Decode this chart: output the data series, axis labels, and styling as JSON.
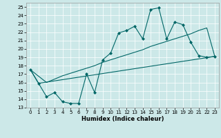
{
  "xlabel": "Humidex (Indice chaleur)",
  "bg_color": "#cce8e8",
  "line_color": "#006666",
  "xlim": [
    -0.5,
    23.5
  ],
  "ylim": [
    13,
    25.5
  ],
  "xticks": [
    0,
    1,
    2,
    3,
    4,
    5,
    6,
    7,
    8,
    9,
    10,
    11,
    12,
    13,
    14,
    15,
    16,
    17,
    18,
    19,
    20,
    21,
    22,
    23
  ],
  "yticks": [
    13,
    14,
    15,
    16,
    17,
    18,
    19,
    20,
    21,
    22,
    23,
    24,
    25
  ],
  "line1_x": [
    0,
    1,
    2,
    3,
    4,
    5,
    6,
    7,
    8,
    9,
    10,
    11,
    12,
    13,
    14,
    15,
    16,
    17,
    18,
    19,
    20,
    21,
    22,
    23
  ],
  "line1_y": [
    17.5,
    15.9,
    14.3,
    14.8,
    13.7,
    13.5,
    13.5,
    17.0,
    14.8,
    18.7,
    19.5,
    21.9,
    22.2,
    22.7,
    21.2,
    24.7,
    24.9,
    21.2,
    23.2,
    22.9,
    20.8,
    19.2,
    19.0,
    19.1
  ],
  "line2_x": [
    0,
    1,
    23
  ],
  "line2_y": [
    17.5,
    15.9,
    19.1
  ],
  "line3_x": [
    0,
    2,
    3,
    4,
    5,
    6,
    7,
    8,
    9,
    10,
    11,
    12,
    13,
    14,
    15,
    16,
    17,
    18,
    19,
    20,
    21,
    22,
    23
  ],
  "line3_y": [
    17.5,
    16.0,
    16.4,
    16.8,
    17.1,
    17.4,
    17.7,
    18.0,
    18.4,
    18.7,
    19.0,
    19.3,
    19.6,
    19.9,
    20.3,
    20.6,
    20.9,
    21.2,
    21.5,
    21.8,
    22.2,
    22.5,
    19.1
  ]
}
